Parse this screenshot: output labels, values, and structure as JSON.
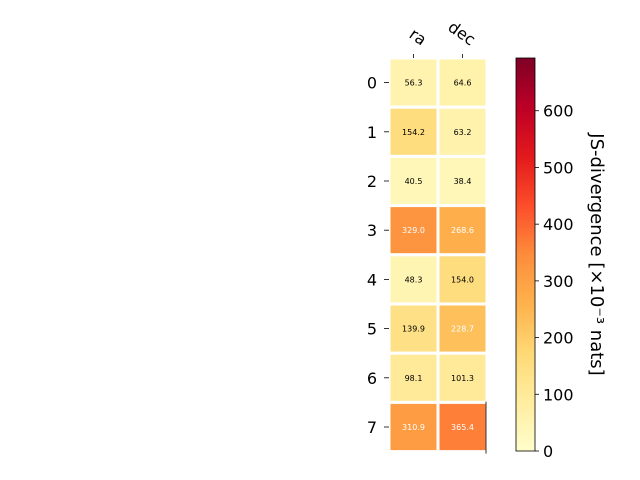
{
  "chart_data": {
    "type": "heatmap",
    "x_labels": [
      "ra",
      "dec"
    ],
    "y_labels": [
      "0",
      "1",
      "2",
      "3",
      "4",
      "5",
      "6",
      "7"
    ],
    "values": [
      [
        56.3,
        64.6
      ],
      [
        154.2,
        63.2
      ],
      [
        40.5,
        38.4
      ],
      [
        329.0,
        268.6
      ],
      [
        48.3,
        154.0
      ],
      [
        139.9,
        228.7
      ],
      [
        98.1,
        101.3
      ],
      [
        310.9,
        365.4
      ]
    ],
    "value_labels": [
      [
        "56.3",
        "64.6"
      ],
      [
        "154.2",
        "63.2"
      ],
      [
        "40.5",
        "38.4"
      ],
      [
        "329.0",
        "268.6"
      ],
      [
        "48.3",
        "154.0"
      ],
      [
        "139.9",
        "228.7"
      ],
      [
        "98.1",
        "101.3"
      ],
      [
        "310.9",
        "365.4"
      ]
    ],
    "colormap": "YlOrRd",
    "colorbar": {
      "label": "JS-divergence [×10⁻³ nats]",
      "range": [
        0,
        693
      ],
      "ticks": [
        "0",
        "100",
        "200",
        "300",
        "400",
        "500",
        "600"
      ]
    }
  }
}
